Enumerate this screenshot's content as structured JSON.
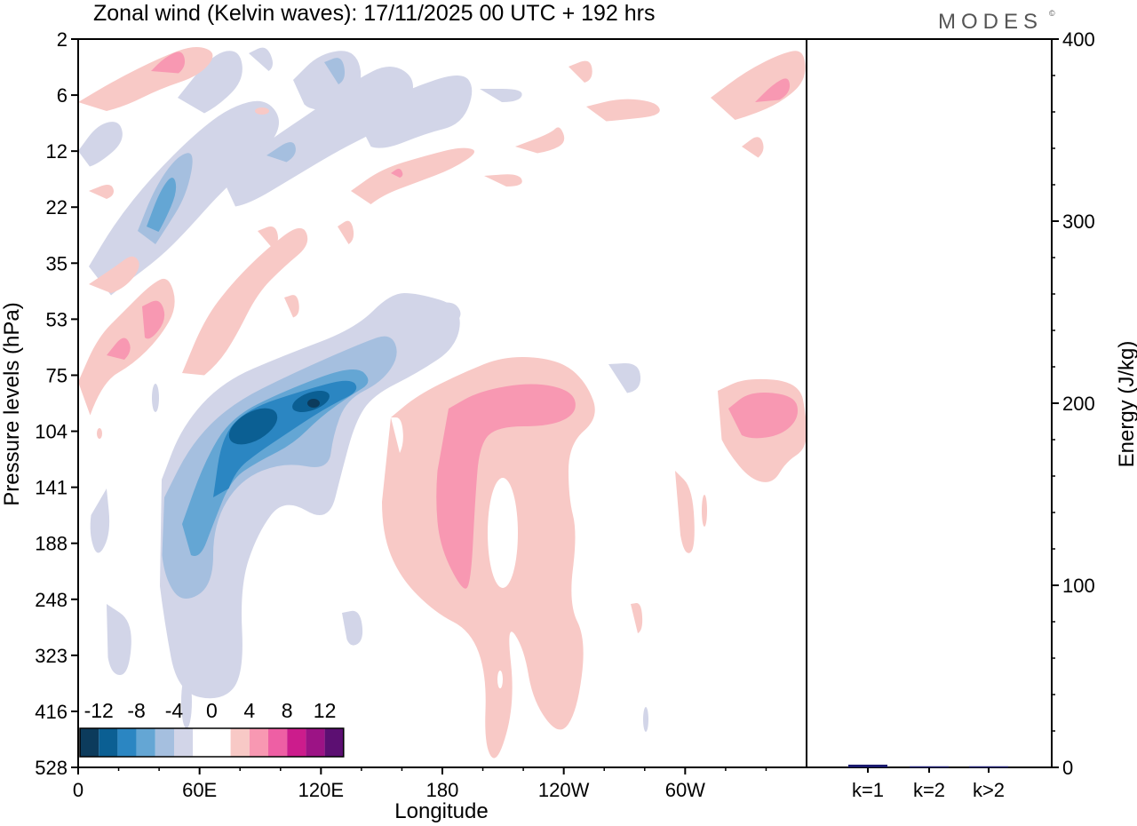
{
  "header": {
    "title": "Zonal wind (Kelvin waves):  17/11/2025  00 UTC  + 192 hrs",
    "brand": "MODES",
    "brand_mark": "©"
  },
  "colors": {
    "neg": [
      "#0c3b5c",
      "#0b5f93",
      "#2b86c2",
      "#64a6d4",
      "#a5bfdf",
      "#d2d5e8"
    ],
    "zero": "#ffffff",
    "pos": [
      "#f8c9c6",
      "#f898b2",
      "#ee5fa4",
      "#cc1c8c",
      "#9c1385",
      "#5c0f72"
    ],
    "bar": "#1a1a6e"
  },
  "chart_data": [
    {
      "type": "heatmap",
      "title": "Zonal wind (Kelvin waves)",
      "xlabel": "Longitude",
      "ylabel": "Pressure levels (hPa)",
      "x_ticks": [
        "0",
        "60E",
        "120E",
        "180",
        "120W",
        "60W"
      ],
      "x_tick_degrees": [
        0,
        60,
        120,
        180,
        240,
        300
      ],
      "xlim": [
        0,
        360
      ],
      "y_ticks": [
        "2",
        "6",
        "12",
        "22",
        "35",
        "53",
        "75",
        "104",
        "141",
        "188",
        "248",
        "323",
        "416",
        "528"
      ],
      "colorbar": {
        "labels": [
          "-12",
          "-8",
          "-4",
          "0",
          "4",
          "8",
          "12"
        ],
        "levels": [
          -14,
          -12,
          -10,
          -8,
          -6,
          -4,
          -2,
          2,
          4,
          6,
          8,
          10,
          12,
          14
        ]
      },
      "features": [
        {
          "name": "easterly-lower-strat",
          "sign": -1,
          "levels": [
            1,
            2,
            3,
            4,
            5
          ],
          "lon_range": [
            40,
            150
          ],
          "pressure_range": [
            53,
            323
          ]
        },
        {
          "name": "westerly-tropopause-dateline",
          "sign": 1,
          "levels": [
            1,
            2
          ],
          "lon_range": [
            150,
            250
          ],
          "pressure_range": [
            75,
            528
          ]
        },
        {
          "name": "westerly-upper-east",
          "sign": 1,
          "levels": [
            1,
            2
          ],
          "lon_range": [
            315,
            360
          ],
          "pressure_range": [
            75,
            141
          ]
        },
        {
          "name": "easterly-upper-strat",
          "sign": -1,
          "levels": [
            1,
            2,
            3
          ],
          "lon_range": [
            20,
            120
          ],
          "pressure_range": [
            2,
            53
          ]
        },
        {
          "name": "westerly-upper-strat",
          "sign": 1,
          "levels": [
            1,
            2
          ],
          "lon_range": [
            0,
            100
          ],
          "pressure_range": [
            2,
            104
          ]
        }
      ]
    },
    {
      "type": "bar",
      "title": "Energy",
      "ylabel": "Energy (J/kg)",
      "categories": [
        "k=1",
        "k=2",
        "k>2"
      ],
      "values": [
        1.5,
        0.6,
        0.6
      ],
      "ylim": [
        0,
        400
      ],
      "y_ticks": [
        "0",
        "100",
        "200",
        "300",
        "400"
      ],
      "y_tick_values": [
        0,
        100,
        200,
        300,
        400
      ]
    }
  ]
}
